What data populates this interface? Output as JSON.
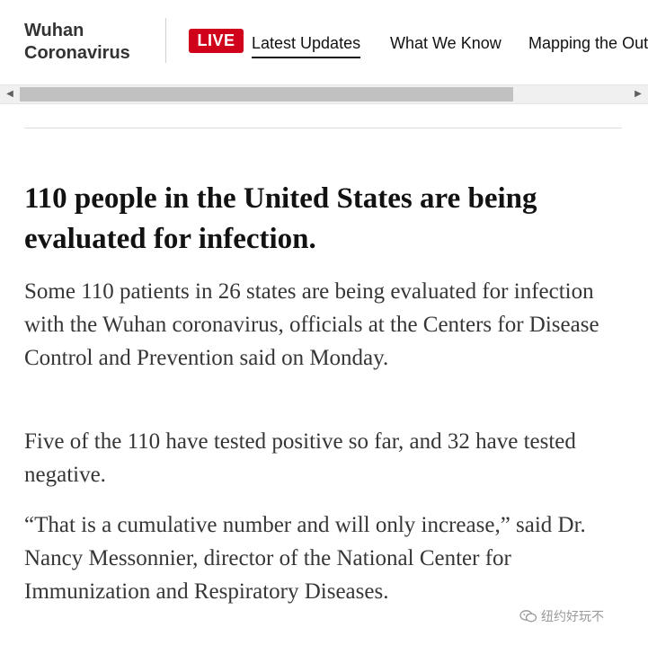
{
  "nav": {
    "brand_line1": "Wuhan",
    "brand_line2": "Coronavirus",
    "live_label": "LIVE",
    "links": [
      {
        "label": "Latest Updates"
      },
      {
        "label": "What We Know"
      },
      {
        "label": "Mapping the Outbreak"
      }
    ]
  },
  "scrollbar": {
    "left_arrow": "◀",
    "right_arrow": "▶"
  },
  "article": {
    "headline": "110 people in the United States are being evaluated for infection.",
    "paragraphs": [
      "Some 110 patients in 26 states are being evaluated for infection with the Wuhan coronavirus, officials at the Centers for Disease Control and Prevention said on Monday.",
      "Five of the 110 have tested positive so far, and 32 have tested negative.",
      "“That is a cumulative number and will only increase,” said Dr. Nancy Messonnier, director of the National Center for Immunization and Respiratory Diseases."
    ]
  },
  "watermark": {
    "icon": "wechat-icon",
    "text": "纽约好玩不"
  },
  "colors": {
    "live_red": "#d0021b",
    "text": "#121212",
    "body_text": "#363636"
  }
}
